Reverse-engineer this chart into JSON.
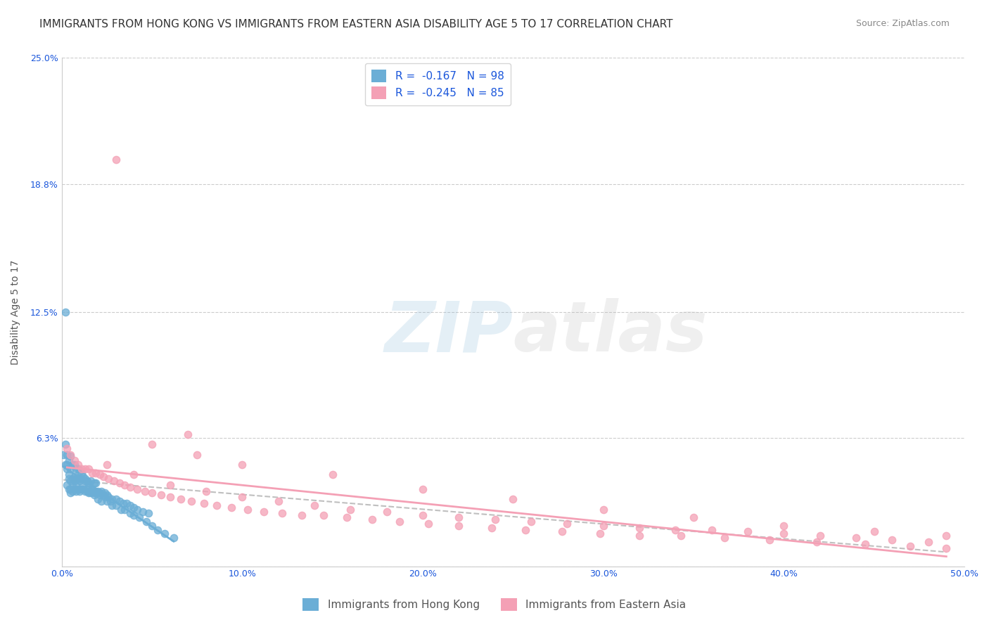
{
  "title": "IMMIGRANTS FROM HONG KONG VS IMMIGRANTS FROM EASTERN ASIA DISABILITY AGE 5 TO 17 CORRELATION CHART",
  "source": "Source: ZipAtlas.com",
  "ylabel": "Disability Age 5 to 17",
  "xlim": [
    0.0,
    0.5
  ],
  "ylim": [
    0.0,
    0.25
  ],
  "series1_name": "Immigrants from Hong Kong",
  "series1_color": "#6baed6",
  "series1_R": "-0.167",
  "series1_N": "98",
  "series2_name": "Immigrants from Eastern Asia",
  "series2_color": "#f4a0b5",
  "series2_R": "-0.245",
  "series2_N": "85",
  "legend_text_color": "#1a56db",
  "background_color": "#ffffff",
  "grid_color": "#cccccc",
  "title_fontsize": 11,
  "axis_label_fontsize": 10,
  "tick_fontsize": 9,
  "legend_fontsize": 11,
  "hk_x": [
    0.001,
    0.002,
    0.002,
    0.003,
    0.003,
    0.003,
    0.004,
    0.004,
    0.004,
    0.005,
    0.005,
    0.005,
    0.005,
    0.006,
    0.006,
    0.006,
    0.007,
    0.007,
    0.007,
    0.008,
    0.008,
    0.008,
    0.009,
    0.009,
    0.009,
    0.01,
    0.01,
    0.01,
    0.011,
    0.011,
    0.012,
    0.012,
    0.013,
    0.013,
    0.014,
    0.014,
    0.015,
    0.015,
    0.016,
    0.016,
    0.017,
    0.018,
    0.018,
    0.019,
    0.019,
    0.02,
    0.021,
    0.022,
    0.023,
    0.024,
    0.025,
    0.026,
    0.028,
    0.03,
    0.032,
    0.034,
    0.036,
    0.038,
    0.04,
    0.042,
    0.045,
    0.048,
    0.002,
    0.003,
    0.004,
    0.005,
    0.006,
    0.007,
    0.008,
    0.009,
    0.01,
    0.011,
    0.012,
    0.013,
    0.014,
    0.015,
    0.016,
    0.017,
    0.018,
    0.019,
    0.02,
    0.021,
    0.022,
    0.024,
    0.025,
    0.027,
    0.028,
    0.03,
    0.033,
    0.035,
    0.038,
    0.04,
    0.043,
    0.047,
    0.05,
    0.053,
    0.057,
    0.062
  ],
  "hk_y": [
    0.055,
    0.05,
    0.06,
    0.04,
    0.048,
    0.055,
    0.038,
    0.045,
    0.052,
    0.036,
    0.042,
    0.048,
    0.054,
    0.037,
    0.043,
    0.05,
    0.038,
    0.044,
    0.05,
    0.037,
    0.043,
    0.048,
    0.038,
    0.043,
    0.048,
    0.037,
    0.042,
    0.047,
    0.038,
    0.043,
    0.038,
    0.044,
    0.037,
    0.043,
    0.037,
    0.042,
    0.036,
    0.041,
    0.037,
    0.042,
    0.038,
    0.036,
    0.041,
    0.036,
    0.041,
    0.037,
    0.036,
    0.037,
    0.035,
    0.036,
    0.035,
    0.034,
    0.033,
    0.033,
    0.032,
    0.031,
    0.031,
    0.03,
    0.029,
    0.028,
    0.027,
    0.026,
    0.125,
    0.05,
    0.043,
    0.038,
    0.04,
    0.042,
    0.04,
    0.043,
    0.038,
    0.046,
    0.04,
    0.042,
    0.038,
    0.04,
    0.036,
    0.038,
    0.035,
    0.037,
    0.033,
    0.035,
    0.032,
    0.034,
    0.032,
    0.032,
    0.03,
    0.03,
    0.028,
    0.028,
    0.026,
    0.025,
    0.024,
    0.022,
    0.02,
    0.018,
    0.016,
    0.014
  ],
  "ea_x": [
    0.003,
    0.005,
    0.007,
    0.009,
    0.011,
    0.013,
    0.015,
    0.017,
    0.019,
    0.021,
    0.023,
    0.026,
    0.029,
    0.032,
    0.035,
    0.038,
    0.042,
    0.046,
    0.05,
    0.055,
    0.06,
    0.066,
    0.072,
    0.079,
    0.086,
    0.094,
    0.103,
    0.112,
    0.122,
    0.133,
    0.145,
    0.158,
    0.172,
    0.187,
    0.203,
    0.22,
    0.238,
    0.257,
    0.277,
    0.298,
    0.32,
    0.343,
    0.367,
    0.392,
    0.418,
    0.445,
    0.47,
    0.49,
    0.025,
    0.04,
    0.06,
    0.08,
    0.1,
    0.12,
    0.14,
    0.16,
    0.18,
    0.2,
    0.22,
    0.24,
    0.26,
    0.28,
    0.3,
    0.32,
    0.34,
    0.36,
    0.38,
    0.4,
    0.42,
    0.44,
    0.46,
    0.48,
    0.05,
    0.075,
    0.1,
    0.15,
    0.2,
    0.25,
    0.3,
    0.35,
    0.4,
    0.45,
    0.49,
    0.03,
    0.07
  ],
  "ea_y": [
    0.058,
    0.055,
    0.052,
    0.05,
    0.048,
    0.048,
    0.048,
    0.046,
    0.046,
    0.045,
    0.044,
    0.043,
    0.042,
    0.041,
    0.04,
    0.039,
    0.038,
    0.037,
    0.036,
    0.035,
    0.034,
    0.033,
    0.032,
    0.031,
    0.03,
    0.029,
    0.028,
    0.027,
    0.026,
    0.025,
    0.025,
    0.024,
    0.023,
    0.022,
    0.021,
    0.02,
    0.019,
    0.018,
    0.017,
    0.016,
    0.015,
    0.015,
    0.014,
    0.013,
    0.012,
    0.011,
    0.01,
    0.009,
    0.05,
    0.045,
    0.04,
    0.037,
    0.034,
    0.032,
    0.03,
    0.028,
    0.027,
    0.025,
    0.024,
    0.023,
    0.022,
    0.021,
    0.02,
    0.019,
    0.018,
    0.018,
    0.017,
    0.016,
    0.015,
    0.014,
    0.013,
    0.012,
    0.06,
    0.055,
    0.05,
    0.045,
    0.038,
    0.033,
    0.028,
    0.024,
    0.02,
    0.017,
    0.015,
    0.2,
    0.065
  ]
}
